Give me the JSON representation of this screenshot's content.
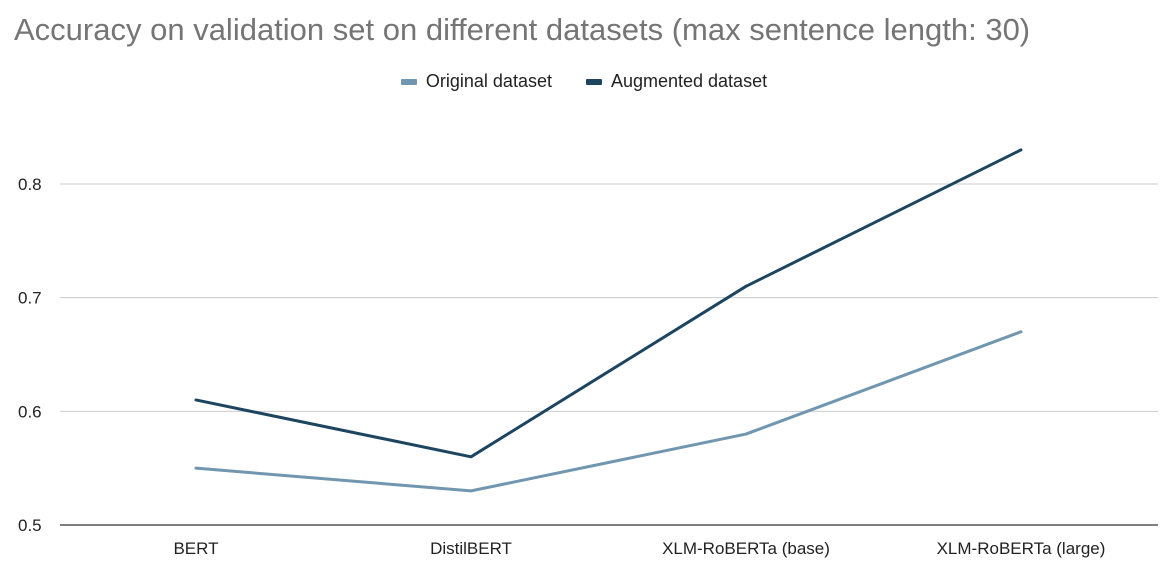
{
  "chart_data": {
    "type": "line",
    "title": "Accuracy on validation set on different datasets (max sentence length: 30)",
    "xlabel": "",
    "ylabel": "",
    "categories": [
      "BERT",
      "DistilBERT",
      "XLM-RoBERTa (base)",
      "XLM-RoBERTa (large)"
    ],
    "series": [
      {
        "name": "Original dataset",
        "values": [
          0.55,
          0.53,
          0.58,
          0.67
        ],
        "color": "#7096b0"
      },
      {
        "name": "Augmented dataset",
        "values": [
          0.61,
          0.56,
          0.71,
          0.83
        ],
        "color": "#1d4560"
      }
    ],
    "ylim": [
      0.5,
      0.83
    ],
    "yticks": [
      "0.5",
      "0.6",
      "0.7",
      "0.8"
    ],
    "grid": true,
    "legend_position": "top-center",
    "grid_color": "#cccccc",
    "axis_color": "#333333"
  }
}
